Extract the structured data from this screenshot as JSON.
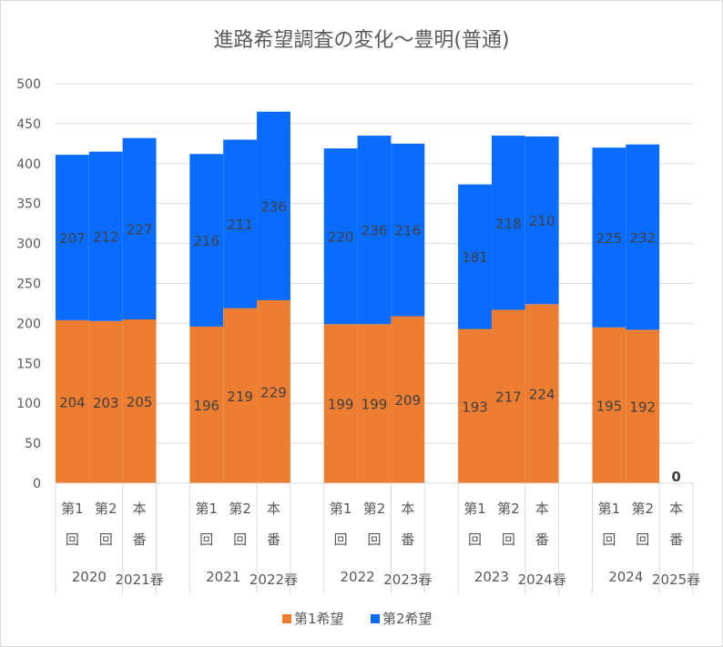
{
  "chart_data": {
    "type": "bar",
    "stacked": true,
    "title": "進路希望調査の変化～豊明(普通)",
    "xlabel": "",
    "ylabel": "",
    "ylim": [
      0,
      500
    ],
    "yticks": [
      0,
      50,
      100,
      150,
      200,
      250,
      300,
      350,
      400,
      450,
      500
    ],
    "grid": true,
    "legend_position": "bottom",
    "colors": {
      "第1希望": "#ED7D31",
      "第2希望": "#0A6CFF"
    },
    "groups": [
      {
        "year_label": "2020",
        "spring_label": "2021春",
        "categories": [
          [
            "第1",
            "回"
          ],
          [
            "第2",
            "回"
          ],
          [
            "本",
            "番"
          ]
        ],
        "series1": [
          204,
          203,
          205
        ],
        "series2": [
          207,
          212,
          227
        ]
      },
      {
        "year_label": "2021",
        "spring_label": "2022春",
        "categories": [
          [
            "第1",
            "回"
          ],
          [
            "第2",
            "回"
          ],
          [
            "本",
            "番"
          ]
        ],
        "series1": [
          196,
          219,
          229
        ],
        "series2": [
          216,
          211,
          236
        ]
      },
      {
        "year_label": "2022",
        "spring_label": "2023春",
        "categories": [
          [
            "第1",
            "回"
          ],
          [
            "第2",
            "回"
          ],
          [
            "本",
            "番"
          ]
        ],
        "series1": [
          199,
          199,
          209
        ],
        "series2": [
          220,
          236,
          216
        ]
      },
      {
        "year_label": "2023",
        "spring_label": "2024春",
        "categories": [
          [
            "第1",
            "回"
          ],
          [
            "第2",
            "回"
          ],
          [
            "本",
            "番"
          ]
        ],
        "series1": [
          193,
          217,
          224
        ],
        "series2": [
          181,
          218,
          210
        ]
      },
      {
        "year_label": "2024",
        "spring_label": "2025春",
        "categories": [
          [
            "第1",
            "回"
          ],
          [
            "第2",
            "回"
          ],
          [
            "本",
            "番"
          ]
        ],
        "series1": [
          195,
          192,
          0
        ],
        "series2": [
          225,
          232,
          null
        ]
      }
    ],
    "series_names": [
      "第1希望",
      "第2希望"
    ]
  }
}
